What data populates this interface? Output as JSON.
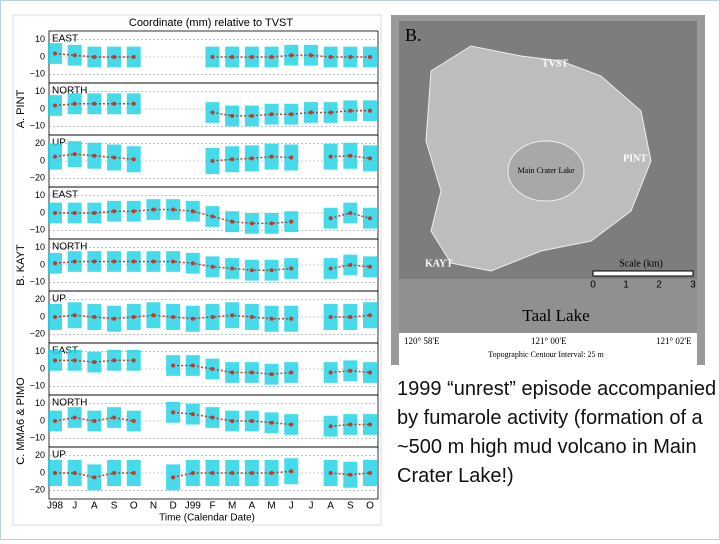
{
  "figure": {
    "title": "Coordinate (mm) relative to TVST",
    "xlabel": "Time (Calendar Date)",
    "categories": [
      "J98",
      "J",
      "A",
      "S",
      "O",
      "N",
      "D",
      "J99",
      "F",
      "M",
      "A",
      "M",
      "J",
      "J",
      "A",
      "S",
      "O"
    ],
    "groups": [
      "A. PINT",
      "B. KAYT",
      "C. MMA6 & PIMO"
    ]
  },
  "chart_data": [
    {
      "type": "line",
      "label": "EAST",
      "ylim": [
        -15,
        15
      ],
      "yticks": [
        10,
        0,
        {
          "value": -10,
          "label": "−10"
        }
      ],
      "values": [
        2,
        1,
        0,
        0,
        0,
        null,
        null,
        null,
        0,
        0,
        0,
        0,
        1,
        1,
        0,
        0,
        0
      ],
      "errors": 6,
      "color": "#c0392b",
      "error_color": "#19d3e6"
    },
    {
      "type": "line",
      "label": "NORTH",
      "ylim": [
        -15,
        15
      ],
      "yticks": [
        10,
        0,
        {
          "value": -10,
          "label": "−10"
        }
      ],
      "values": [
        2,
        3,
        3,
        3,
        3,
        null,
        null,
        null,
        -2,
        -4,
        -4,
        -3,
        -3,
        -2,
        -2,
        -1,
        -1
      ],
      "errors": 6,
      "color": "#c0392b",
      "error_color": "#19d3e6"
    },
    {
      "type": "line",
      "label": "UP",
      "ylim": [
        -30,
        30
      ],
      "yticks": [
        20,
        0,
        {
          "value": -20,
          "label": "−20"
        }
      ],
      "values": [
        5,
        8,
        6,
        4,
        2,
        null,
        null,
        null,
        0,
        2,
        3,
        5,
        4,
        null,
        5,
        6,
        3
      ],
      "errors": 15,
      "color": "#c0392b",
      "error_color": "#19d3e6"
    },
    {
      "type": "line",
      "label": "EAST",
      "ylim": [
        -15,
        15
      ],
      "yticks": [
        10,
        0,
        {
          "value": -10,
          "label": "−10"
        }
      ],
      "values": [
        0,
        0,
        0,
        1,
        1,
        2,
        2,
        1,
        -2,
        -5,
        -6,
        -6,
        -5,
        null,
        -3,
        0,
        -3
      ],
      "errors": 6,
      "color": "#c0392b",
      "error_color": "#19d3e6"
    },
    {
      "type": "line",
      "label": "NORTH",
      "ylim": [
        -15,
        15
      ],
      "yticks": [
        10,
        0,
        {
          "value": -10,
          "label": "−10"
        }
      ],
      "values": [
        1,
        2,
        2,
        2,
        2,
        2,
        2,
        1,
        -1,
        -2,
        -3,
        -3,
        -2,
        null,
        -2,
        0,
        -1
      ],
      "errors": 6,
      "color": "#c0392b",
      "error_color": "#19d3e6"
    },
    {
      "type": "line",
      "label": "UP",
      "ylim": [
        -30,
        30
      ],
      "yticks": [
        20,
        0,
        {
          "value": -20,
          "label": "−20"
        }
      ],
      "values": [
        0,
        2,
        0,
        -2,
        0,
        2,
        0,
        -2,
        0,
        2,
        0,
        -2,
        -2,
        null,
        0,
        0,
        2
      ],
      "errors": 15,
      "color": "#c0392b",
      "error_color": "#19d3e6"
    },
    {
      "type": "line",
      "label": "EAST",
      "ylim": [
        -15,
        15
      ],
      "yticks": [
        10,
        0,
        {
          "value": -10,
          "label": "−10"
        }
      ],
      "values": [
        5,
        5,
        4,
        5,
        5,
        null,
        2,
        2,
        0,
        -2,
        -2,
        -3,
        -2,
        null,
        -2,
        -1,
        -2
      ],
      "errors": 6,
      "color": "#c0392b",
      "error_color": "#19d3e6"
    },
    {
      "type": "line",
      "label": "NORTH",
      "ylim": [
        -15,
        15
      ],
      "yticks": [
        10,
        0,
        {
          "value": -10,
          "label": "−10"
        }
      ],
      "values": [
        0,
        2,
        0,
        2,
        0,
        null,
        5,
        4,
        2,
        0,
        0,
        -1,
        -2,
        null,
        -3,
        -2,
        -2
      ],
      "errors": 6,
      "color": "#c0392b",
      "error_color": "#19d3e6"
    },
    {
      "type": "line",
      "label": "UP",
      "ylim": [
        -30,
        30
      ],
      "yticks": [
        20,
        0,
        {
          "value": -20,
          "label": "−20"
        }
      ],
      "values": [
        0,
        0,
        -5,
        0,
        0,
        null,
        -5,
        0,
        0,
        0,
        0,
        0,
        2,
        null,
        0,
        -2,
        0
      ],
      "errors": 15,
      "color": "#c0392b",
      "error_color": "#19d3e6"
    }
  ],
  "map": {
    "panel": "B.",
    "stations": [
      "TVST",
      "PINT",
      "KAYT"
    ],
    "crater": "Main Crater Lake",
    "scale_title": "Scale (km)",
    "scale": [
      "0",
      "1",
      "2",
      "3"
    ],
    "lake": "Taal Lake",
    "longitudes": [
      "120° 58'E",
      "121° 00'E",
      "121° 02'E"
    ],
    "note": "Topographic Centour Interval: 25 m"
  },
  "caption": "1999 “unrest” episode accompanied by fumarole activity (formation of a ~500 m high mud volcano in Main Crater Lake!)"
}
